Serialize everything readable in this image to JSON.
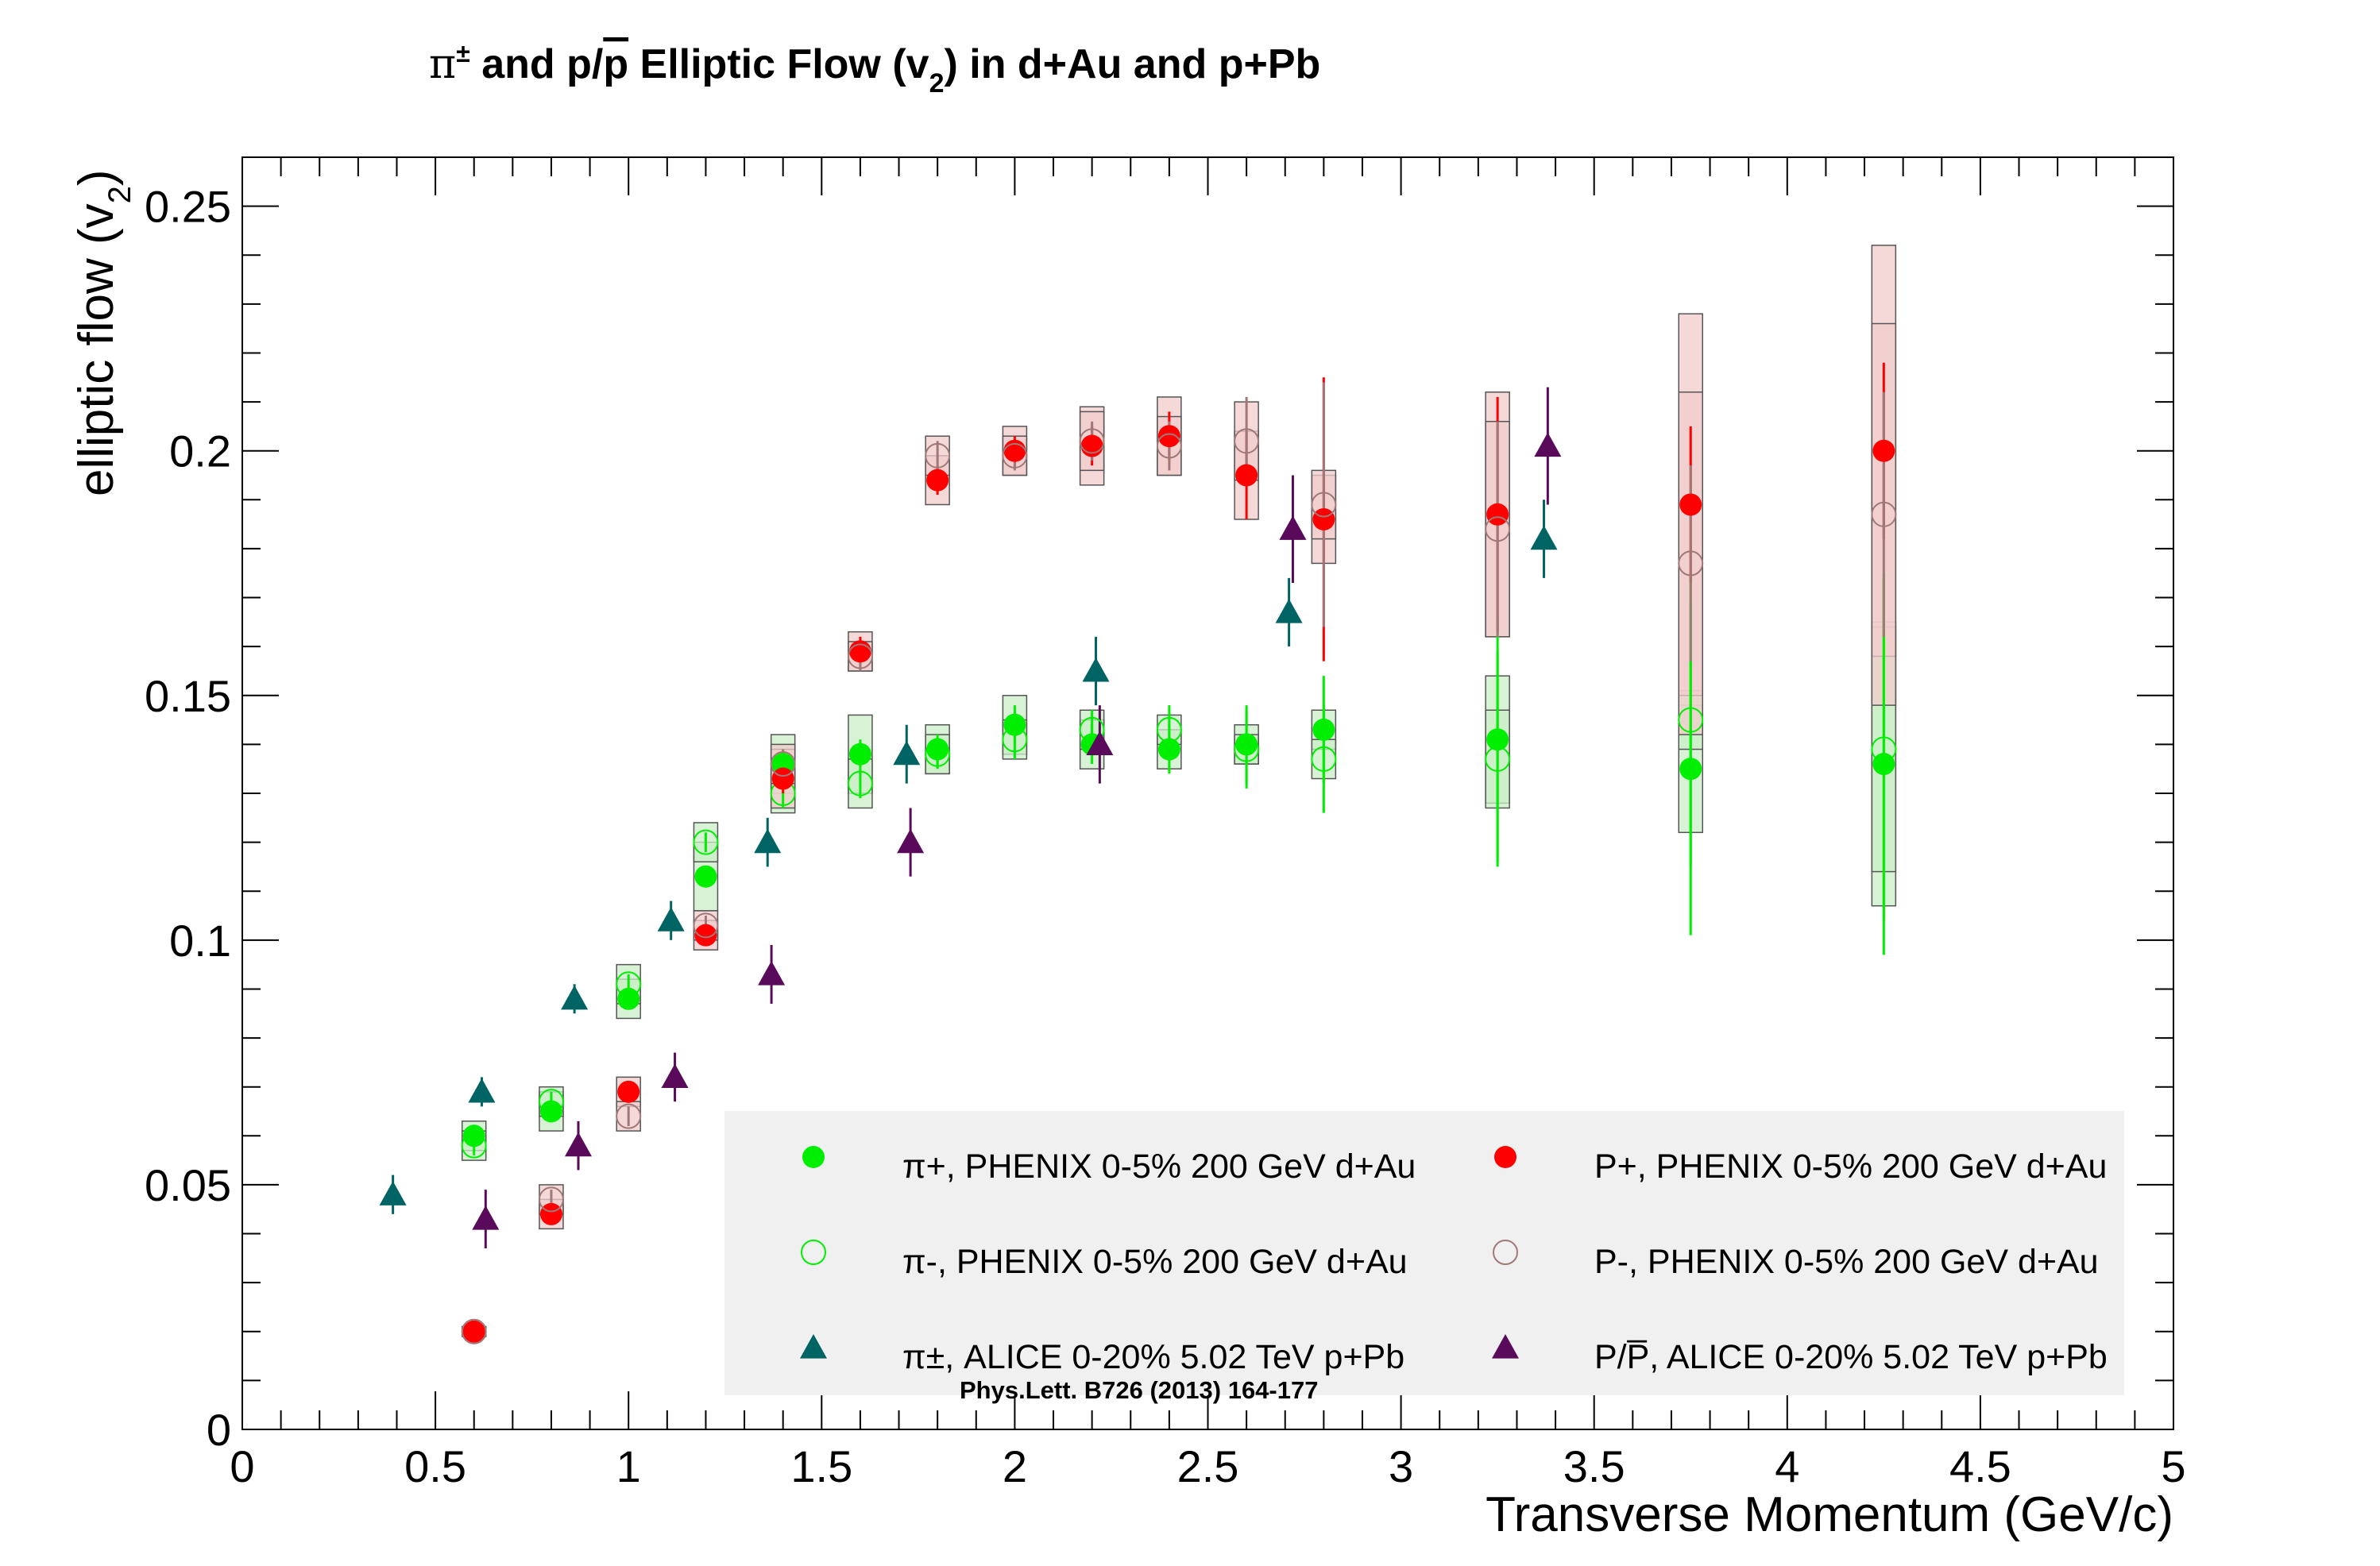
{
  "chart_data": {
    "type": "scatter",
    "title": {
      "pi": "π",
      "pm": "±",
      "part1": " and p/",
      "pbar": "p",
      "part2": " Elliptic Flow (v",
      "sub": "2",
      "part3": ") in d+Au and p+Pb"
    },
    "xlabel": "Transverse Momentum (GeV/c)",
    "ylabel": {
      "main": "elliptic flow (v",
      "sub": "2",
      "close": ")"
    },
    "xlim": [
      0,
      5
    ],
    "ylim": [
      0,
      0.26
    ],
    "xticks": [
      0,
      0.5,
      1,
      1.5,
      2,
      2.5,
      3,
      3.5,
      4,
      4.5,
      5
    ],
    "xtick_labels": [
      "0",
      "0.5",
      "1",
      "1.5",
      "2",
      "2.5",
      "3",
      "3.5",
      "4",
      "4.5",
      "5"
    ],
    "yticks": [
      0,
      0.05,
      0.1,
      0.15,
      0.2,
      0.25
    ],
    "ytick_labels": [
      "0",
      "0.05",
      "0.1",
      "0.15",
      "0.2",
      "0.25"
    ],
    "reference": "Phys.Lett. B726 (2013) 164-177",
    "legend_position": "bottom-right",
    "series": [
      {
        "name": "π+, PHENIX 0-5% 200 GeV d+Au",
        "marker": "circle-filled",
        "color": "#00ee00",
        "sys_fill": "#c9eec6",
        "points": [
          {
            "x": 0.6,
            "y": 0.06,
            "err": 0.002,
            "sys": 0.003
          },
          {
            "x": 0.8,
            "y": 0.065,
            "err": 0.002,
            "sys": 0.004
          },
          {
            "x": 1.0,
            "y": 0.088,
            "err": 0.002,
            "sys": 0.004
          },
          {
            "x": 1.2,
            "y": 0.113,
            "err": 0.002,
            "sys": 0.007
          },
          {
            "x": 1.4,
            "y": 0.136,
            "err": 0.003,
            "sys": 0.006
          },
          {
            "x": 1.6,
            "y": 0.138,
            "err": 0.003,
            "sys": 0.008
          },
          {
            "x": 1.8,
            "y": 0.139,
            "err": 0.003,
            "sys": 0.005
          },
          {
            "x": 2.0,
            "y": 0.144,
            "err": 0.004,
            "sys": 0.006
          },
          {
            "x": 2.2,
            "y": 0.14,
            "err": 0.004,
            "sys": 0.005
          },
          {
            "x": 2.4,
            "y": 0.139,
            "err": 0.005,
            "sys": 0.004
          },
          {
            "x": 2.6,
            "y": 0.14,
            "err": 0.008,
            "sys": 0.004
          },
          {
            "x": 2.8,
            "y": 0.143,
            "err": 0.011,
            "sys": 0.004
          },
          {
            "x": 3.25,
            "y": 0.141,
            "err": 0.025,
            "sys": 0.013
          },
          {
            "x": 3.75,
            "y": 0.135,
            "err": 0.034,
            "sys": 0.013
          },
          {
            "x": 4.25,
            "y": 0.136,
            "err": 0.039,
            "sys": 0.029
          }
        ]
      },
      {
        "name": "π-, PHENIX 0-5% 200 GeV d+Au",
        "marker": "circle-open",
        "color": "#00ee00",
        "sys_fill": "#c9eec6",
        "points": [
          {
            "x": 0.6,
            "y": 0.058,
            "err": 0.002,
            "sys": 0.003
          },
          {
            "x": 0.8,
            "y": 0.067,
            "err": 0.002,
            "sys": 0.003
          },
          {
            "x": 1.0,
            "y": 0.091,
            "err": 0.002,
            "sys": 0.004
          },
          {
            "x": 1.2,
            "y": 0.12,
            "err": 0.002,
            "sys": 0.004
          },
          {
            "x": 1.4,
            "y": 0.13,
            "err": 0.003,
            "sys": 0.004
          },
          {
            "x": 1.6,
            "y": 0.132,
            "err": 0.003,
            "sys": 0.005
          },
          {
            "x": 1.8,
            "y": 0.138,
            "err": 0.003,
            "sys": 0.004
          },
          {
            "x": 2.0,
            "y": 0.141,
            "err": 0.004,
            "sys": 0.004
          },
          {
            "x": 2.2,
            "y": 0.143,
            "err": 0.004,
            "sys": 0.004
          },
          {
            "x": 2.4,
            "y": 0.143,
            "err": 0.005,
            "sys": 0.003
          },
          {
            "x": 2.6,
            "y": 0.139,
            "err": 0.008,
            "sys": 0.003
          },
          {
            "x": 2.8,
            "y": 0.137,
            "err": 0.011,
            "sys": 0.004
          },
          {
            "x": 3.25,
            "y": 0.137,
            "err": 0.022,
            "sys": 0.01
          },
          {
            "x": 3.75,
            "y": 0.145,
            "err": 0.03,
            "sys": 0.006
          },
          {
            "x": 4.25,
            "y": 0.139,
            "err": 0.035,
            "sys": 0.025
          }
        ]
      },
      {
        "name": "π±, ALICE 0-20% 5.02 TeV p+Pb",
        "marker": "triangle-filled",
        "color": "#006464",
        "points": [
          {
            "x": 0.39,
            "y": 0.048,
            "err": 0.004
          },
          {
            "x": 0.62,
            "y": 0.069,
            "err": 0.003
          },
          {
            "x": 0.86,
            "y": 0.088,
            "err": 0.003
          },
          {
            "x": 1.11,
            "y": 0.104,
            "err": 0.004
          },
          {
            "x": 1.36,
            "y": 0.12,
            "err": 0.005
          },
          {
            "x": 1.72,
            "y": 0.138,
            "err": 0.006
          },
          {
            "x": 2.21,
            "y": 0.155,
            "err": 0.007
          },
          {
            "x": 2.71,
            "y": 0.167,
            "err": 0.007
          },
          {
            "x": 3.37,
            "y": 0.182,
            "err": 0.008
          }
        ]
      },
      {
        "name": "P+, PHENIX 0-5% 200 GeV d+Au",
        "marker": "circle-filled",
        "color": "#ff0000",
        "sys_fill": "#f2cccc",
        "points": [
          {
            "x": 0.6,
            "y": 0.02,
            "err": 0.001,
            "sys": 0.001
          },
          {
            "x": 0.8,
            "y": 0.044,
            "err": 0.002,
            "sys": 0.003
          },
          {
            "x": 1.0,
            "y": 0.069,
            "err": 0.002,
            "sys": 0.003
          },
          {
            "x": 1.2,
            "y": 0.101,
            "err": 0.002,
            "sys": 0.003
          },
          {
            "x": 1.4,
            "y": 0.133,
            "err": 0.003,
            "sys": 0.006
          },
          {
            "x": 1.6,
            "y": 0.159,
            "err": 0.003,
            "sys": 0.004
          },
          {
            "x": 1.8,
            "y": 0.194,
            "err": 0.003,
            "sys": 0.005
          },
          {
            "x": 2.0,
            "y": 0.2,
            "err": 0.003,
            "sys": 0.005
          },
          {
            "x": 2.2,
            "y": 0.201,
            "err": 0.004,
            "sys": 0.008
          },
          {
            "x": 2.4,
            "y": 0.203,
            "err": 0.005,
            "sys": 0.008
          },
          {
            "x": 2.6,
            "y": 0.195,
            "err": 0.009,
            "sys": 0.009
          },
          {
            "x": 2.8,
            "y": 0.186,
            "err": 0.029,
            "sys": 0.009
          },
          {
            "x": 3.25,
            "y": 0.187,
            "err": 0.024,
            "sys": 0.025
          },
          {
            "x": 3.75,
            "y": 0.189,
            "err": 0.016,
            "sys": 0.039
          },
          {
            "x": 4.25,
            "y": 0.2,
            "err": 0.018,
            "sys": 0.042
          }
        ]
      },
      {
        "name": "P-, PHENIX 0-5% 200 GeV d+Au",
        "marker": "circle-open",
        "color": "#a07878",
        "sys_fill": "#f2cccc",
        "points": [
          {
            "x": 0.6,
            "y": 0.02,
            "err": 0.001,
            "sys": 0.001
          },
          {
            "x": 0.8,
            "y": 0.047,
            "err": 0.002,
            "sys": 0.003
          },
          {
            "x": 1.0,
            "y": 0.064,
            "err": 0.002,
            "sys": 0.003
          },
          {
            "x": 1.2,
            "y": 0.103,
            "err": 0.002,
            "sys": 0.003
          },
          {
            "x": 1.4,
            "y": 0.136,
            "err": 0.003,
            "sys": 0.004
          },
          {
            "x": 1.6,
            "y": 0.158,
            "err": 0.003,
            "sys": 0.003
          },
          {
            "x": 1.8,
            "y": 0.199,
            "err": 0.003,
            "sys": 0.004
          },
          {
            "x": 2.0,
            "y": 0.199,
            "err": 0.003,
            "sys": 0.004
          },
          {
            "x": 2.2,
            "y": 0.202,
            "err": 0.004,
            "sys": 0.006
          },
          {
            "x": 2.4,
            "y": 0.201,
            "err": 0.005,
            "sys": 0.006
          },
          {
            "x": 2.6,
            "y": 0.202,
            "err": 0.009,
            "sys": 0.008
          },
          {
            "x": 2.8,
            "y": 0.189,
            "err": 0.025,
            "sys": 0.007
          },
          {
            "x": 3.25,
            "y": 0.184,
            "err": 0.022,
            "sys": 0.022
          },
          {
            "x": 3.75,
            "y": 0.177,
            "err": 0.02,
            "sys": 0.035
          },
          {
            "x": 4.25,
            "y": 0.187,
            "err": 0.025,
            "sys": 0.039
          }
        ]
      },
      {
        "name": "P/P̅, ALICE 0-20% 5.02 TeV p+Pb",
        "marker": "triangle-filled",
        "color": "#5a0a5a",
        "points": [
          {
            "x": 0.63,
            "y": 0.043,
            "err": 0.006
          },
          {
            "x": 0.87,
            "y": 0.058,
            "err": 0.005
          },
          {
            "x": 1.12,
            "y": 0.072,
            "err": 0.005
          },
          {
            "x": 1.37,
            "y": 0.093,
            "err": 0.006
          },
          {
            "x": 1.73,
            "y": 0.12,
            "err": 0.007
          },
          {
            "x": 2.22,
            "y": 0.14,
            "err": 0.008
          },
          {
            "x": 2.72,
            "y": 0.184,
            "err": 0.011
          },
          {
            "x": 3.38,
            "y": 0.201,
            "err": 0.012
          }
        ]
      }
    ]
  }
}
